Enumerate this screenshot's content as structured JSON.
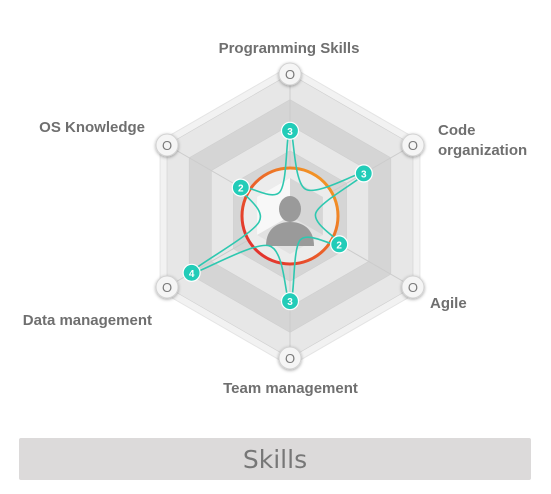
{
  "chart_data": {
    "type": "radar",
    "title": "Skills",
    "axes": [
      {
        "label": "Programming Skills",
        "value": 3
      },
      {
        "label": "Code\norganization",
        "value": 3
      },
      {
        "label": "Agile",
        "value": 2
      },
      {
        "label": "Team management",
        "value": 3
      },
      {
        "label": "Data management",
        "value": 4
      },
      {
        "label": "OS Knowledge",
        "value": 2
      }
    ],
    "axis_end_marker": "O",
    "center_icon": "user-avatar-icon",
    "colors": {
      "series": "#2ec8b0",
      "point": "#22ccb8",
      "ring_start": "#f5a623",
      "ring_end": "#e0202f",
      "hexagon_light": "#e6e6e6",
      "hexagon_mid": "#d2d2d2",
      "label": "#6f6f6f",
      "footer_bg": "#dcdada"
    }
  }
}
